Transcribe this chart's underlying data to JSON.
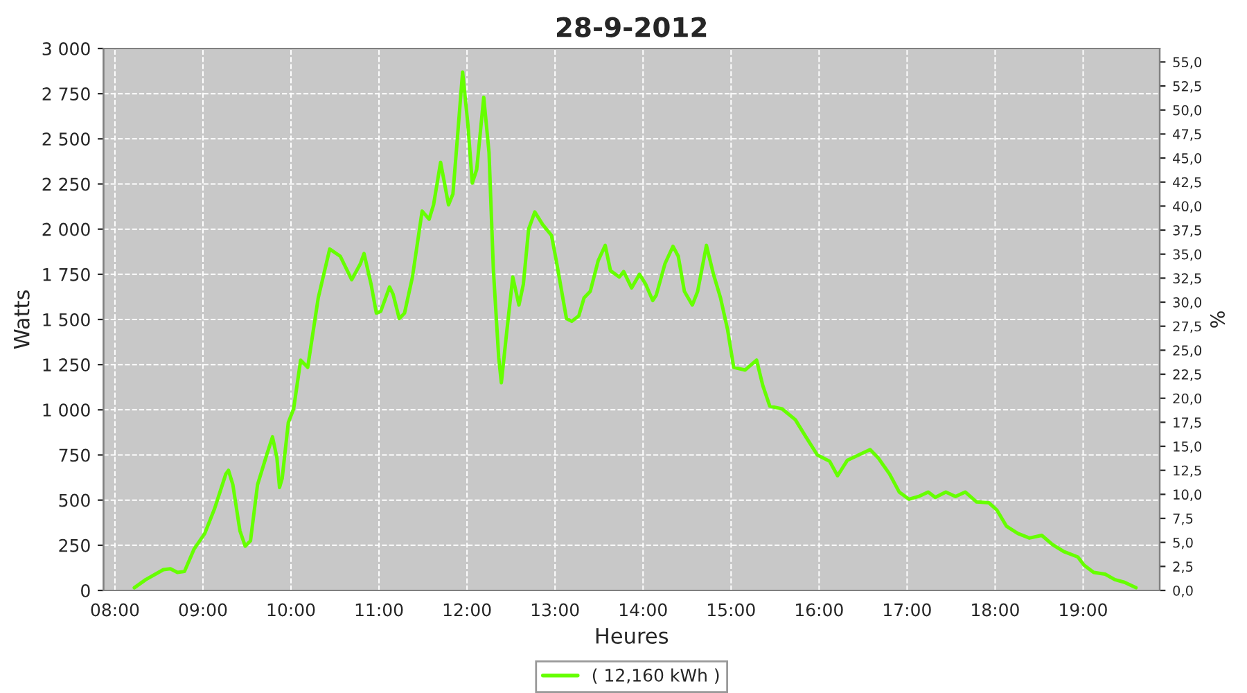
{
  "chart_data": {
    "type": "line",
    "title": "28-9-2012",
    "xlabel": "Heures",
    "ylabel": "Watts",
    "y2label": "%",
    "xlim": [
      7.87,
      19.87
    ],
    "xticks": [
      {
        "value": 8,
        "label": "08:00"
      },
      {
        "value": 9,
        "label": "09:00"
      },
      {
        "value": 10,
        "label": "10:00"
      },
      {
        "value": 11,
        "label": "11:00"
      },
      {
        "value": 12,
        "label": "12:00"
      },
      {
        "value": 13,
        "label": "13:00"
      },
      {
        "value": 14,
        "label": "14:00"
      },
      {
        "value": 15,
        "label": "15:00"
      },
      {
        "value": 16,
        "label": "16:00"
      },
      {
        "value": 17,
        "label": "17:00"
      },
      {
        "value": 18,
        "label": "18:00"
      },
      {
        "value": 19,
        "label": "19:00"
      }
    ],
    "ylim": [
      0,
      3000
    ],
    "yticks": [
      0,
      250,
      500,
      750,
      {
        "value": 1000,
        "label": "1 000"
      },
      {
        "value": 1250,
        "label": "1 250"
      },
      {
        "value": 1500,
        "label": "1 500"
      },
      {
        "value": 1750,
        "label": "1 750"
      },
      {
        "value": 2000,
        "label": "2 000"
      },
      {
        "value": 2250,
        "label": "2 250"
      },
      {
        "value": 2500,
        "label": "2 500"
      },
      {
        "value": 2750,
        "label": "2 750"
      },
      {
        "value": 3000,
        "label": "3 000"
      }
    ],
    "y2lim": [
      0,
      56.4
    ],
    "y2ticks": [
      {
        "value": 0,
        "label": "0,0"
      },
      {
        "value": 2.5,
        "label": "2,5"
      },
      {
        "value": 5,
        "label": "5,0"
      },
      {
        "value": 7.5,
        "label": "7,5"
      },
      {
        "value": 10,
        "label": "10,0"
      },
      {
        "value": 12.5,
        "label": "12,5"
      },
      {
        "value": 15,
        "label": "15,0"
      },
      {
        "value": 17.5,
        "label": "17,5"
      },
      {
        "value": 20,
        "label": "20,0"
      },
      {
        "value": 22.5,
        "label": "22,5"
      },
      {
        "value": 25,
        "label": "25,0"
      },
      {
        "value": 27.5,
        "label": "27,5"
      },
      {
        "value": 30,
        "label": "30,0"
      },
      {
        "value": 32.5,
        "label": "32,5"
      },
      {
        "value": 35,
        "label": "35,0"
      },
      {
        "value": 37.5,
        "label": "37,5"
      },
      {
        "value": 40,
        "label": "40,0"
      },
      {
        "value": 42.5,
        "label": "42,5"
      },
      {
        "value": 45,
        "label": "45,0"
      },
      {
        "value": 47.5,
        "label": "47,5"
      },
      {
        "value": 50,
        "label": "50,0"
      },
      {
        "value": 52.5,
        "label": "52,5"
      },
      {
        "value": 55,
        "label": "55,0"
      }
    ],
    "grid": true,
    "legend": "bottom",
    "marker": "none",
    "line_style": "solid",
    "x": [
      8.22,
      8.35,
      8.46,
      8.55,
      8.63,
      8.71,
      8.79,
      8.9,
      9.02,
      9.13,
      9.26,
      9.29,
      9.34,
      9.42,
      9.48,
      9.54,
      9.62,
      9.73,
      9.79,
      9.84,
      9.87,
      9.9,
      9.97,
      10.03,
      10.11,
      10.19,
      10.31,
      10.44,
      10.56,
      10.69,
      10.79,
      10.83,
      10.91,
      10.97,
      11.02,
      11.12,
      11.16,
      11.23,
      11.29,
      11.38,
      11.49,
      11.57,
      11.62,
      11.7,
      11.79,
      11.84,
      11.89,
      11.95,
      12.01,
      12.06,
      12.11,
      12.19,
      12.25,
      12.3,
      12.36,
      12.39,
      12.45,
      12.52,
      12.59,
      12.64,
      12.7,
      12.77,
      12.86,
      12.96,
      13.02,
      13.13,
      13.19,
      13.27,
      13.33,
      13.4,
      13.49,
      13.57,
      13.63,
      13.73,
      13.78,
      13.87,
      13.96,
      14.03,
      14.11,
      14.15,
      14.25,
      14.34,
      14.4,
      14.47,
      14.56,
      14.62,
      14.72,
      14.8,
      14.88,
      14.96,
      15.03,
      15.16,
      15.29,
      15.36,
      15.44,
      15.58,
      15.73,
      15.85,
      15.98,
      16.12,
      16.21,
      16.32,
      16.45,
      16.58,
      16.67,
      16.8,
      16.91,
      17.02,
      17.13,
      17.24,
      17.32,
      17.44,
      17.55,
      17.66,
      17.79,
      17.93,
      18.02,
      18.13,
      18.26,
      18.39,
      18.53,
      18.65,
      18.78,
      18.94,
      19.01,
      19.12,
      19.25,
      19.36,
      19.47,
      19.6
    ],
    "series": [
      {
        "name": "( 12,160 kWh )",
        "color": "#66ff00",
        "values": [
          15,
          60,
          90,
          115,
          120,
          100,
          105,
          230,
          315,
          450,
          645,
          665,
          585,
          330,
          245,
          275,
          585,
          760,
          850,
          735,
          570,
          620,
          930,
          1005,
          1275,
          1235,
          1620,
          1890,
          1850,
          1720,
          1810,
          1865,
          1695,
          1535,
          1545,
          1680,
          1640,
          1505,
          1535,
          1735,
          2100,
          2055,
          2135,
          2370,
          2135,
          2195,
          2500,
          2870,
          2580,
          2255,
          2330,
          2730,
          2425,
          1770,
          1290,
          1150,
          1425,
          1735,
          1580,
          1695,
          2000,
          2095,
          2025,
          1965,
          1810,
          1505,
          1490,
          1520,
          1620,
          1655,
          1825,
          1910,
          1770,
          1735,
          1765,
          1675,
          1750,
          1695,
          1605,
          1635,
          1810,
          1905,
          1850,
          1655,
          1580,
          1655,
          1910,
          1750,
          1620,
          1445,
          1235,
          1220,
          1275,
          1135,
          1020,
          1005,
          945,
          850,
          750,
          715,
          635,
          720,
          750,
          780,
          735,
          645,
          545,
          505,
          520,
          545,
          515,
          545,
          520,
          545,
          490,
          485,
          445,
          355,
          315,
          290,
          305,
          255,
          215,
          185,
          140,
          100,
          90,
          60,
          45,
          15
        ]
      }
    ]
  }
}
